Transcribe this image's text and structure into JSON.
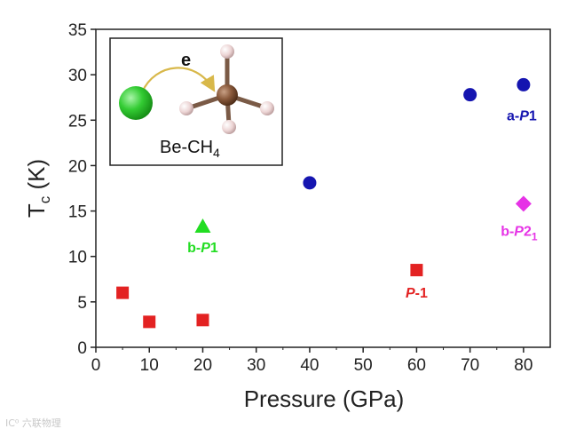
{
  "chart_data": {
    "type": "scatter",
    "xlabel": "Pressure (GPa)",
    "ylabel": "T",
    "ylabel_sub": "c",
    "ylabel_unit": " (K)",
    "xlim": [
      0,
      85
    ],
    "ylim": [
      0,
      35
    ],
    "xticks": [
      0,
      10,
      20,
      30,
      40,
      50,
      60,
      70,
      80
    ],
    "yticks": [
      0,
      5,
      10,
      15,
      20,
      25,
      30,
      35
    ],
    "series": [
      {
        "name": "b-P1",
        "label_parts": [
          "b-",
          "P",
          "1"
        ],
        "sub": "",
        "marker": "triangle",
        "color": "#22dd22",
        "x": [
          20
        ],
        "y": [
          13.3
        ]
      },
      {
        "name": "P-1",
        "label_parts": [
          "",
          "P",
          "-1"
        ],
        "sub": "",
        "marker": "square",
        "color": "#e32222",
        "x": [
          5,
          10,
          20,
          60
        ],
        "y": [
          6.0,
          2.8,
          3.0,
          8.5
        ]
      },
      {
        "name": "a-P1",
        "label_parts": [
          "a-",
          "P",
          "1"
        ],
        "sub": "",
        "marker": "circle",
        "color": "#1515b0",
        "x": [
          40,
          70,
          80
        ],
        "y": [
          18.1,
          27.8,
          28.9
        ]
      },
      {
        "name": "b-P2_1",
        "label_parts": [
          "b-",
          "P",
          "2"
        ],
        "sub": "1",
        "marker": "diamond",
        "color": "#e633e6",
        "x": [
          80
        ],
        "y": [
          15.8
        ]
      }
    ],
    "inset": {
      "label_main": "Be-CH",
      "label_sub": "4",
      "arrow_label": "e",
      "atoms": {
        "beryllium": "#33cc33",
        "carbon": "#8a5a3c",
        "hydrogen": "#ecd4d4"
      }
    }
  },
  "watermark": "IC⁰ 六联物理"
}
